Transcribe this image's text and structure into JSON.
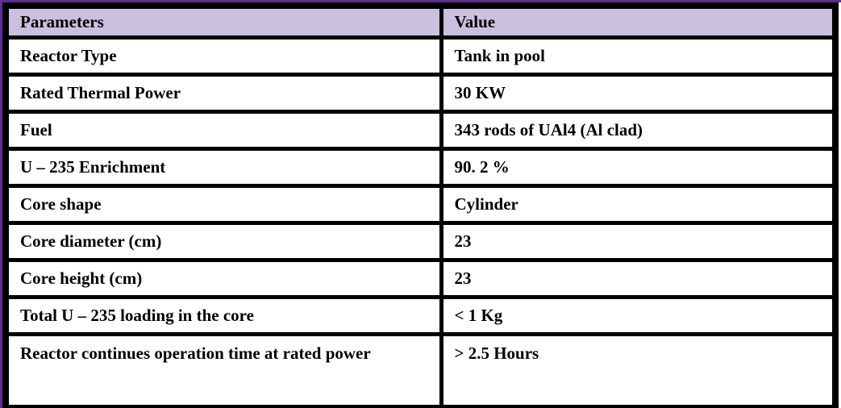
{
  "table": {
    "headers": {
      "parameters": "Parameters",
      "value": "Value"
    },
    "rows": [
      {
        "parameter": "Reactor Type",
        "value": "Tank in pool"
      },
      {
        "parameter": "Rated Thermal Power",
        "value": "30 KW"
      },
      {
        "parameter": "Fuel",
        "value": "343 rods of UAl4 (Al clad)"
      },
      {
        "parameter": "U – 235 Enrichment",
        "value": "90. 2 %"
      },
      {
        "parameter": "Core shape",
        "value": "Cylinder"
      },
      {
        "parameter": "Core diameter (cm)",
        "value": "23"
      },
      {
        "parameter": "Core height (cm)",
        "value": "23"
      },
      {
        "parameter": "Total U – 235 loading in the core",
        "value": "< 1 Kg"
      },
      {
        "parameter": "Reactor continues operation time at rated power",
        "value": "> 2.5 Hours"
      }
    ]
  },
  "colors": {
    "header_background": "#c9c1dd",
    "border": "#000000",
    "accent_stripe": "#5e2e91",
    "text": "#000000"
  }
}
